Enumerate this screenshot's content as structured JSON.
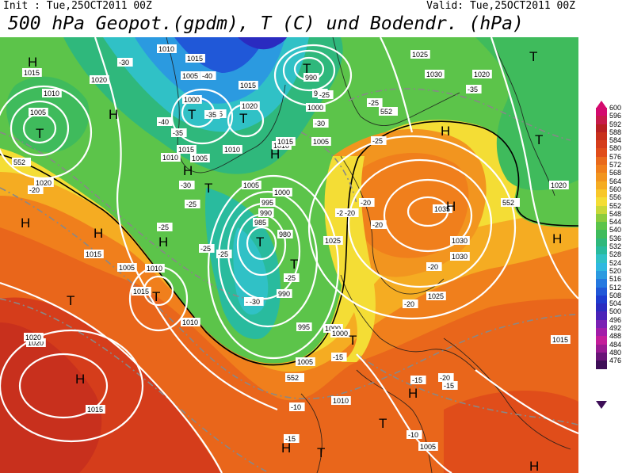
{
  "header": {
    "init": "Init : Tue,25OCT2011 00Z",
    "valid": "Valid: Tue,25OCT2011 00Z",
    "title": "500 hPa Geopot.(gpdm), T (C) und Bodendr. (hPa)"
  },
  "legend": {
    "labels": [
      "600",
      "596",
      "592",
      "588",
      "584",
      "580",
      "576",
      "572",
      "568",
      "564",
      "560",
      "556",
      "552",
      "548",
      "544",
      "540",
      "536",
      "532",
      "528",
      "524",
      "520",
      "516",
      "512",
      "508",
      "504",
      "500",
      "496",
      "492",
      "488",
      "484",
      "480",
      "476"
    ],
    "colors": [
      "#d40a6e",
      "#c71b4a",
      "#b82023",
      "#c8301d",
      "#d53d1b",
      "#e04d1a",
      "#e96a1c",
      "#f07f1c",
      "#f2951f",
      "#f5ac22",
      "#f8c72a",
      "#f4dd35",
      "#c9d838",
      "#8ccc3d",
      "#5cc44a",
      "#3fbb5c",
      "#2fb87c",
      "#29bb9e",
      "#30c1c6",
      "#2fb8e0",
      "#2b9ae0",
      "#2579e0",
      "#2058d8",
      "#1d3ccf",
      "#2a2bc0",
      "#4a23b8",
      "#7a20b3",
      "#a21ca8",
      "#c41d9a",
      "#9a1a92",
      "#6a1578",
      "#3d0e57"
    ]
  },
  "map": {
    "pressure_labels": [
      "1000",
      "1005",
      "1015",
      "1005",
      "1020",
      "1010",
      "1005",
      "1000",
      "1015",
      "1020",
      "1015",
      "1010",
      "1005",
      "1010",
      "995",
      "990",
      "1000",
      "1005",
      "1025",
      "1030",
      "1020",
      "1010",
      "1015",
      "1005",
      "995",
      "1000",
      "990",
      "985",
      "980",
      "990",
      "995",
      "1000",
      "1005",
      "1010",
      "1015",
      "1020",
      "1025",
      "1030",
      "1035",
      "1030",
      "1025",
      "1020",
      "1015",
      "1005",
      "1000",
      "1010",
      "1015",
      "1020",
      "1020",
      "1015",
      "1010",
      "1005",
      "1010",
      "1015"
    ],
    "temp_labels": [
      "-30",
      "-40",
      "-35",
      "-40",
      "-35",
      "-25",
      "-25",
      "-30",
      "-20",
      "-25",
      "-25",
      "-30",
      "-35",
      "-25",
      "-25",
      "-20",
      "-20",
      "-20",
      "-15",
      "-20",
      "-20",
      "-15",
      "-10",
      "-15",
      "-10",
      "-25",
      "-30",
      "-20",
      "-15",
      "-25",
      "-30",
      "-35",
      "-25"
    ],
    "contour_label_552": "552",
    "highs": [
      "H",
      "H",
      "H",
      "H",
      "H",
      "H",
      "H",
      "H",
      "H",
      "H",
      "H",
      "H",
      "H",
      "H"
    ],
    "lows": [
      "T",
      "T",
      "T",
      "T",
      "T",
      "T",
      "T",
      "T",
      "T",
      "T",
      "T",
      "T",
      "T",
      "T"
    ]
  }
}
